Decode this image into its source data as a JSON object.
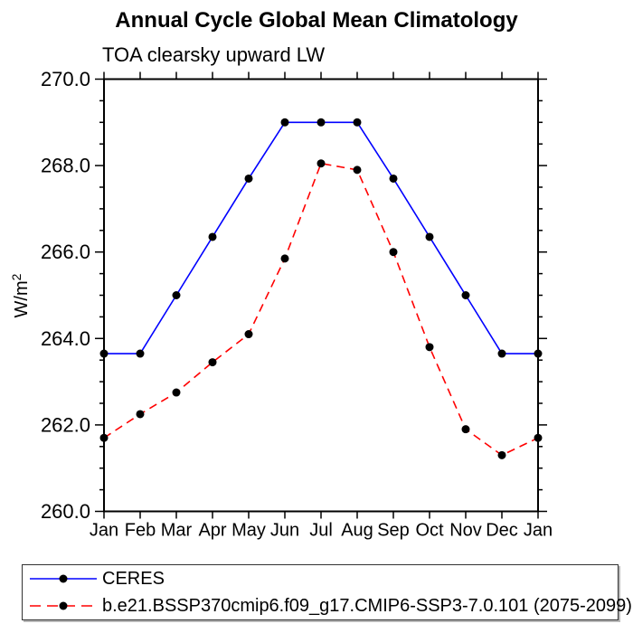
{
  "title": "Annual Cycle Global Mean Climatology",
  "subtitle": "TOA clearsky upward LW",
  "chart_data": {
    "type": "line",
    "title": "Annual Cycle Global Mean Climatology",
    "subtitle": "TOA clearsky upward LW",
    "ylabel": "W/m²",
    "ylabel_base": "W/m",
    "ylabel_sup": "2",
    "categories": [
      "Jan",
      "Feb",
      "Mar",
      "Apr",
      "May",
      "Jun",
      "Jul",
      "Aug",
      "Sep",
      "Oct",
      "Nov",
      "Dec",
      "Jan"
    ],
    "series": [
      {
        "name": "CERES",
        "color": "#0000ff",
        "line_style": "solid",
        "marker": "filled-circle",
        "marker_color": "#000000",
        "values": [
          263.65,
          263.65,
          265.0,
          266.35,
          267.7,
          269.0,
          269.0,
          269.0,
          267.7,
          266.35,
          265.0,
          263.65,
          263.65
        ]
      },
      {
        "name": "b.e21.BSSP370cmip6.f09_g17.CMIP6-SSP3-7.0.101 (2075-2099)",
        "color": "#ff0000",
        "line_style": "dashed",
        "marker": "filled-circle",
        "marker_color": "#000000",
        "values": [
          261.7,
          262.25,
          262.75,
          263.45,
          264.1,
          265.85,
          268.05,
          267.9,
          266.0,
          263.8,
          261.9,
          261.3,
          261.7
        ]
      }
    ],
    "ylim": [
      260.0,
      270.0
    ],
    "ytick_major": 2.0,
    "ytick_minor": 0.5,
    "ytick_label_decimals": 1,
    "grid": false,
    "legend_position": "bottom-left-box",
    "axis_color": "#000000",
    "background_color": "#ffffff"
  }
}
